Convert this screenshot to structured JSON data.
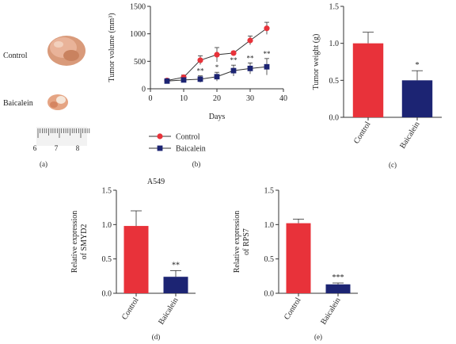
{
  "photo": {
    "labels": [
      "Control",
      "Baicalein"
    ],
    "ruler_ticks": [
      "6",
      "7",
      "8"
    ],
    "panel_label": "(a)"
  },
  "chart_data": [
    {
      "id": "b",
      "type": "line",
      "panel_label": "(b)",
      "title": "",
      "xlabel": "Days",
      "ylabel": "Tumor volume (mm³)",
      "xlim": [
        0,
        40
      ],
      "ylim": [
        0,
        1500
      ],
      "xticks": [
        0,
        10,
        20,
        30,
        40
      ],
      "yticks": [
        0,
        500,
        1000,
        1500
      ],
      "legend_position": "bottom",
      "series": [
        {
          "name": "Control",
          "color": "#e8323a",
          "marker": "circle",
          "x": [
            5,
            10,
            15,
            20,
            25,
            30,
            35
          ],
          "y": [
            150,
            210,
            520,
            620,
            650,
            880,
            1100
          ],
          "err": [
            30,
            40,
            80,
            130,
            30,
            80,
            110
          ],
          "sig": [
            "",
            "",
            "",
            "",
            "",
            "",
            ""
          ]
        },
        {
          "name": "Baicalein",
          "color": "#1c2473",
          "marker": "square",
          "x": [
            5,
            10,
            15,
            20,
            25,
            30,
            35
          ],
          "y": [
            140,
            160,
            175,
            220,
            330,
            370,
            400
          ],
          "err": [
            20,
            30,
            60,
            80,
            100,
            100,
            150
          ],
          "sig": [
            "",
            "",
            "**",
            "*",
            "**",
            "**",
            "**"
          ]
        }
      ]
    },
    {
      "id": "c",
      "type": "bar",
      "panel_label": "(c)",
      "title": "",
      "ylabel": "Tumor weight (g)",
      "ylim": [
        0,
        1.5
      ],
      "yticks": [
        "0.0",
        "0.5",
        "1.0",
        "1.5"
      ],
      "categories": [
        "Control",
        "Baicalein"
      ],
      "values": [
        1.0,
        0.5
      ],
      "err": [
        0.15,
        0.13
      ],
      "colors": [
        "#e8323a",
        "#1c2473"
      ],
      "sig": [
        "",
        "*"
      ]
    },
    {
      "id": "d",
      "type": "bar",
      "panel_label": "(d)",
      "title": "A549",
      "ylabel": "Relative expression of SMYD2",
      "ylim": [
        0,
        1.5
      ],
      "yticks": [
        "0.0",
        "0.5",
        "1.0",
        "1.5"
      ],
      "categories": [
        "Control",
        "Baicalein"
      ],
      "values": [
        0.98,
        0.24
      ],
      "err": [
        0.22,
        0.09
      ],
      "colors": [
        "#e8323a",
        "#1c2473"
      ],
      "sig": [
        "",
        "**"
      ]
    },
    {
      "id": "e",
      "type": "bar",
      "panel_label": "(e)",
      "title": "",
      "ylabel": "Relative expression of RPS7",
      "ylim": [
        0,
        1.5
      ],
      "yticks": [
        "0.0",
        "0.5",
        "1.0",
        "1.5"
      ],
      "categories": [
        "Control",
        "Baicalein"
      ],
      "values": [
        1.02,
        0.13
      ],
      "err": [
        0.06,
        0.02
      ],
      "colors": [
        "#e8323a",
        "#1c2473"
      ],
      "sig": [
        "",
        "***"
      ]
    }
  ]
}
